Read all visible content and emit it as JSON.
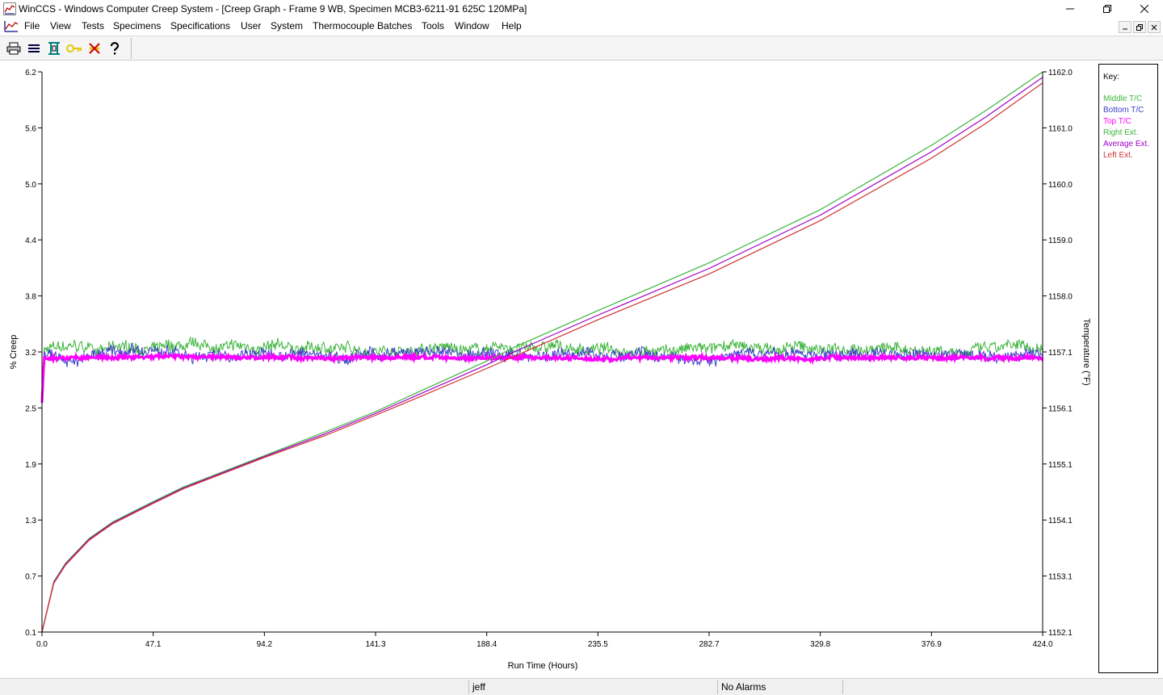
{
  "window": {
    "title": "WinCCS - Windows Computer Creep System - [Creep Graph - Frame 9 WB, Specimen MCB3-6211-91 625C 120MPa]"
  },
  "menu": {
    "items": [
      {
        "label": "File"
      },
      {
        "label": "View"
      },
      {
        "label": "Tests"
      },
      {
        "label": "Specimens"
      },
      {
        "label": "Specifications"
      },
      {
        "label": "User"
      },
      {
        "label": "System"
      },
      {
        "label": "Thermocouple Batches"
      },
      {
        "label": "Tools"
      },
      {
        "label": "Window"
      },
      {
        "label": "Help"
      }
    ]
  },
  "toolbar": {
    "buttons": [
      {
        "icon": "printer-icon"
      },
      {
        "icon": "list-icon"
      },
      {
        "icon": "frame-icon"
      },
      {
        "icon": "key-icon"
      },
      {
        "icon": "delete-icon"
      },
      {
        "icon": "help-icon"
      }
    ]
  },
  "status": {
    "user": "jeff",
    "alarms": "No Alarms"
  },
  "chart_data": {
    "type": "line",
    "title": "",
    "xlabel": "Run Time (Hours)",
    "ylabel": "% Creep",
    "y2label": "Temperature (°F)",
    "xlim": [
      0.0,
      424.0
    ],
    "ylim": [
      0.1,
      6.2
    ],
    "y2lim": [
      1152.1,
      1162.0
    ],
    "x_ticks": [
      "0.0",
      "47.1",
      "94.2",
      "141.3",
      "188.4",
      "235.5",
      "282.7",
      "329.8",
      "376.9",
      "424.0"
    ],
    "y_ticks": [
      "0.1",
      "0.7",
      "1.3",
      "1.9",
      "2.5",
      "3.2",
      "3.8",
      "4.4",
      "5.0",
      "5.6",
      "6.2"
    ],
    "y2_ticks": [
      "1152.1",
      "1153.1",
      "1154.1",
      "1155.1",
      "1156.1",
      "1157.1",
      "1158.0",
      "1159.0",
      "1160.0",
      "1161.0",
      "1162.0"
    ],
    "grid": false,
    "legend_title": "Key:",
    "legend_position": "right",
    "series": [
      {
        "name": "Middle T/C",
        "color": "#3cb43c",
        "axis": "right",
        "kind": "temperature",
        "level": 1157.1,
        "noise": 0.12
      },
      {
        "name": "Bottom T/C",
        "color": "#3c3cc8",
        "axis": "right",
        "kind": "temperature",
        "level": 1157.0,
        "noise": 0.12
      },
      {
        "name": "Top T/C",
        "color": "#ff00ff",
        "axis": "right",
        "kind": "temperature",
        "level": 1156.95,
        "noise": 0.04
      },
      {
        "name": "Right Ext.",
        "color": "#3cb43c",
        "axis": "left",
        "kind": "creep",
        "x": [
          0,
          5,
          10,
          20,
          30,
          47.1,
          60,
          94.2,
          120,
          141.3,
          160,
          188.4,
          200,
          235.5,
          282.7,
          329.8,
          376.9,
          400,
          424.0
        ],
        "y": [
          0.1,
          0.65,
          0.85,
          1.12,
          1.3,
          1.52,
          1.68,
          2.02,
          2.28,
          2.5,
          2.72,
          3.05,
          3.2,
          3.6,
          4.12,
          4.7,
          5.4,
          5.78,
          6.2
        ]
      },
      {
        "name": "Average Ext.",
        "color": "#a000c8",
        "axis": "left",
        "kind": "creep",
        "x": [
          0,
          5,
          10,
          20,
          30,
          47.1,
          60,
          94.2,
          120,
          141.3,
          160,
          188.4,
          200,
          235.5,
          282.7,
          329.8,
          376.9,
          400,
          424.0
        ],
        "y": [
          0.1,
          0.64,
          0.84,
          1.11,
          1.29,
          1.51,
          1.67,
          2.01,
          2.26,
          2.48,
          2.69,
          3.01,
          3.15,
          3.55,
          4.06,
          4.64,
          5.33,
          5.71,
          6.14
        ]
      },
      {
        "name": "Left Ext.",
        "color": "#d23232",
        "axis": "left",
        "kind": "creep",
        "x": [
          0,
          5,
          10,
          20,
          30,
          47.1,
          60,
          94.2,
          120,
          141.3,
          160,
          188.4,
          200,
          235.5,
          282.7,
          329.8,
          376.9,
          400,
          424.0
        ],
        "y": [
          0.1,
          0.63,
          0.83,
          1.1,
          1.28,
          1.5,
          1.66,
          2.0,
          2.24,
          2.46,
          2.66,
          2.97,
          3.1,
          3.5,
          4.0,
          4.58,
          5.26,
          5.64,
          6.08
        ]
      }
    ]
  }
}
